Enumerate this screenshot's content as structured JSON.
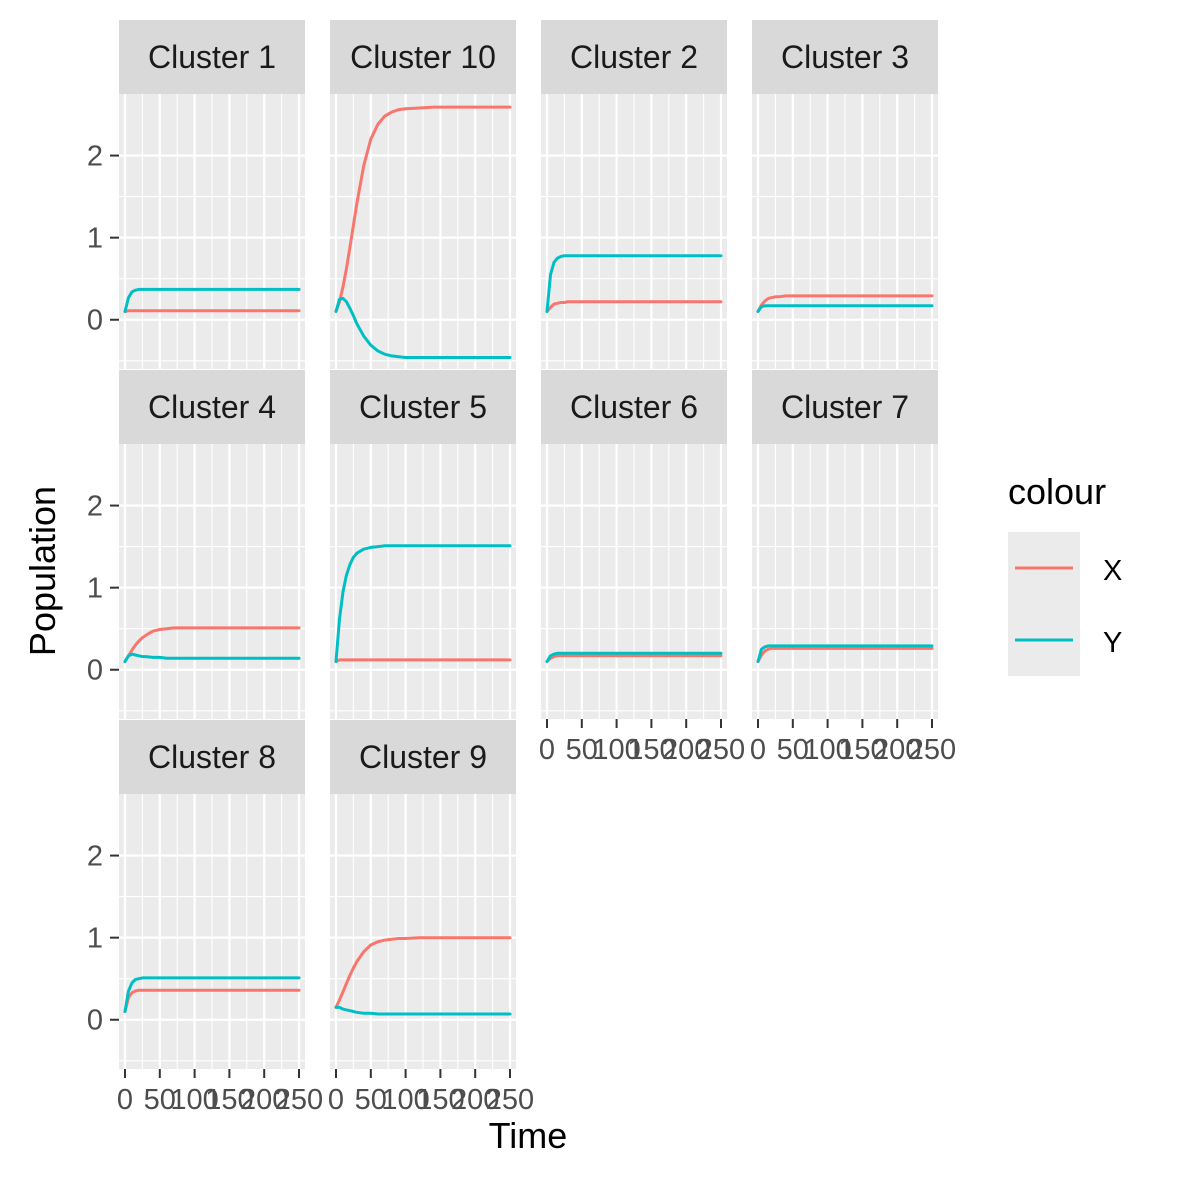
{
  "chart_data": {
    "type": "line",
    "layout": "facet-wrap",
    "xlabel": "Time",
    "ylabel": "Population",
    "xlim": [
      0,
      250
    ],
    "ylim": [
      -0.6,
      2.75
    ],
    "x_ticks": [
      0,
      50,
      100,
      150,
      200,
      250
    ],
    "x_tick_labels": [
      "0",
      "50",
      "100",
      "150",
      "200",
      "250"
    ],
    "y_ticks": [
      0,
      1,
      2
    ],
    "y_tick_labels": [
      "0",
      "1",
      "2"
    ],
    "grid": true,
    "legend": {
      "title": "colour",
      "position": "right",
      "entries": [
        {
          "label": "X",
          "color": "#F8766D"
        },
        {
          "label": "Y",
          "color": "#00BFC4"
        }
      ]
    },
    "x": [
      0,
      5,
      10,
      15,
      20,
      25,
      30,
      40,
      50,
      60,
      70,
      80,
      90,
      100,
      120,
      140,
      160,
      180,
      200,
      220,
      250
    ],
    "panels": [
      {
        "label": "Cluster 1",
        "series": [
          {
            "name": "X",
            "values": [
              0.1,
              0.11,
              0.11,
              0.11,
              0.11,
              0.11,
              0.11,
              0.11,
              0.11,
              0.11,
              0.11,
              0.11,
              0.11,
              0.11,
              0.11,
              0.11,
              0.11,
              0.11,
              0.11,
              0.11,
              0.11
            ]
          },
          {
            "name": "Y",
            "values": [
              0.1,
              0.27,
              0.34,
              0.36,
              0.37,
              0.37,
              0.37,
              0.37,
              0.37,
              0.37,
              0.37,
              0.37,
              0.37,
              0.37,
              0.37,
              0.37,
              0.37,
              0.37,
              0.37,
              0.37,
              0.37
            ]
          }
        ]
      },
      {
        "label": "Cluster 10",
        "series": [
          {
            "name": "X",
            "values": [
              0.1,
              0.22,
              0.4,
              0.62,
              0.88,
              1.15,
              1.42,
              1.88,
              2.2,
              2.38,
              2.48,
              2.53,
              2.56,
              2.57,
              2.58,
              2.59,
              2.59,
              2.59,
              2.59,
              2.59,
              2.59
            ]
          },
          {
            "name": "Y",
            "values": [
              0.1,
              0.25,
              0.26,
              0.22,
              0.14,
              0.05,
              -0.05,
              -0.2,
              -0.31,
              -0.38,
              -0.42,
              -0.44,
              -0.45,
              -0.46,
              -0.46,
              -0.46,
              -0.46,
              -0.46,
              -0.46,
              -0.46,
              -0.46
            ]
          }
        ]
      },
      {
        "label": "Cluster 2",
        "series": [
          {
            "name": "X",
            "values": [
              0.1,
              0.15,
              0.19,
              0.2,
              0.21,
              0.21,
              0.22,
              0.22,
              0.22,
              0.22,
              0.22,
              0.22,
              0.22,
              0.22,
              0.22,
              0.22,
              0.22,
              0.22,
              0.22,
              0.22,
              0.22
            ]
          },
          {
            "name": "Y",
            "values": [
              0.1,
              0.55,
              0.7,
              0.75,
              0.77,
              0.78,
              0.78,
              0.78,
              0.78,
              0.78,
              0.78,
              0.78,
              0.78,
              0.78,
              0.78,
              0.78,
              0.78,
              0.78,
              0.78,
              0.78,
              0.78
            ]
          }
        ]
      },
      {
        "label": "Cluster 3",
        "series": [
          {
            "name": "X",
            "values": [
              0.1,
              0.18,
              0.23,
              0.26,
              0.27,
              0.28,
              0.28,
              0.29,
              0.29,
              0.29,
              0.29,
              0.29,
              0.29,
              0.29,
              0.29,
              0.29,
              0.29,
              0.29,
              0.29,
              0.29,
              0.29
            ]
          },
          {
            "name": "Y",
            "values": [
              0.1,
              0.16,
              0.17,
              0.17,
              0.17,
              0.17,
              0.17,
              0.17,
              0.17,
              0.17,
              0.17,
              0.17,
              0.17,
              0.17,
              0.17,
              0.17,
              0.17,
              0.17,
              0.17,
              0.17,
              0.17
            ]
          }
        ]
      },
      {
        "label": "Cluster 4",
        "series": [
          {
            "name": "X",
            "values": [
              0.1,
              0.17,
              0.24,
              0.3,
              0.35,
              0.39,
              0.42,
              0.47,
              0.49,
              0.5,
              0.51,
              0.51,
              0.51,
              0.51,
              0.51,
              0.51,
              0.51,
              0.51,
              0.51,
              0.51,
              0.51
            ]
          },
          {
            "name": "Y",
            "values": [
              0.1,
              0.17,
              0.19,
              0.18,
              0.17,
              0.16,
              0.16,
              0.15,
              0.15,
              0.14,
              0.14,
              0.14,
              0.14,
              0.14,
              0.14,
              0.14,
              0.14,
              0.14,
              0.14,
              0.14,
              0.14
            ]
          }
        ]
      },
      {
        "label": "Cluster 5",
        "series": [
          {
            "name": "X",
            "values": [
              0.1,
              0.12,
              0.12,
              0.12,
              0.12,
              0.12,
              0.12,
              0.12,
              0.12,
              0.12,
              0.12,
              0.12,
              0.12,
              0.12,
              0.12,
              0.12,
              0.12,
              0.12,
              0.12,
              0.12,
              0.12
            ]
          },
          {
            "name": "Y",
            "values": [
              0.1,
              0.62,
              0.95,
              1.15,
              1.28,
              1.37,
              1.42,
              1.47,
              1.49,
              1.5,
              1.51,
              1.51,
              1.51,
              1.51,
              1.51,
              1.51,
              1.51,
              1.51,
              1.51,
              1.51,
              1.51
            ]
          }
        ]
      },
      {
        "label": "Cluster 6",
        "series": [
          {
            "name": "X",
            "values": [
              0.1,
              0.14,
              0.16,
              0.17,
              0.17,
              0.17,
              0.17,
              0.17,
              0.17,
              0.17,
              0.17,
              0.17,
              0.17,
              0.17,
              0.17,
              0.17,
              0.17,
              0.17,
              0.17,
              0.17,
              0.17
            ]
          },
          {
            "name": "Y",
            "values": [
              0.1,
              0.17,
              0.19,
              0.2,
              0.2,
              0.2,
              0.2,
              0.2,
              0.2,
              0.2,
              0.2,
              0.2,
              0.2,
              0.2,
              0.2,
              0.2,
              0.2,
              0.2,
              0.2,
              0.2,
              0.2
            ]
          }
        ]
      },
      {
        "label": "Cluster 7",
        "series": [
          {
            "name": "X",
            "values": [
              0.1,
              0.18,
              0.23,
              0.25,
              0.26,
              0.26,
              0.26,
              0.26,
              0.26,
              0.26,
              0.26,
              0.26,
              0.26,
              0.26,
              0.26,
              0.26,
              0.26,
              0.26,
              0.26,
              0.26,
              0.26
            ]
          },
          {
            "name": "Y",
            "values": [
              0.1,
              0.25,
              0.28,
              0.29,
              0.29,
              0.29,
              0.29,
              0.29,
              0.29,
              0.29,
              0.29,
              0.29,
              0.29,
              0.29,
              0.29,
              0.29,
              0.29,
              0.29,
              0.29,
              0.29,
              0.29
            ]
          }
        ]
      },
      {
        "label": "Cluster 8",
        "series": [
          {
            "name": "X",
            "values": [
              0.1,
              0.27,
              0.33,
              0.35,
              0.36,
              0.36,
              0.36,
              0.36,
              0.36,
              0.36,
              0.36,
              0.36,
              0.36,
              0.36,
              0.36,
              0.36,
              0.36,
              0.36,
              0.36,
              0.36,
              0.36
            ]
          },
          {
            "name": "Y",
            "values": [
              0.1,
              0.35,
              0.45,
              0.49,
              0.5,
              0.51,
              0.51,
              0.51,
              0.51,
              0.51,
              0.51,
              0.51,
              0.51,
              0.51,
              0.51,
              0.51,
              0.51,
              0.51,
              0.51,
              0.51,
              0.51
            ]
          }
        ]
      },
      {
        "label": "Cluster 9",
        "series": [
          {
            "name": "X",
            "values": [
              0.15,
              0.24,
              0.34,
              0.44,
              0.54,
              0.63,
              0.71,
              0.83,
              0.91,
              0.95,
              0.97,
              0.98,
              0.99,
              0.99,
              1.0,
              1.0,
              1.0,
              1.0,
              1.0,
              1.0,
              1.0
            ]
          },
          {
            "name": "Y",
            "values": [
              0.15,
              0.15,
              0.13,
              0.12,
              0.11,
              0.1,
              0.09,
              0.08,
              0.08,
              0.07,
              0.07,
              0.07,
              0.07,
              0.07,
              0.07,
              0.07,
              0.07,
              0.07,
              0.07,
              0.07,
              0.07
            ]
          }
        ]
      }
    ]
  }
}
